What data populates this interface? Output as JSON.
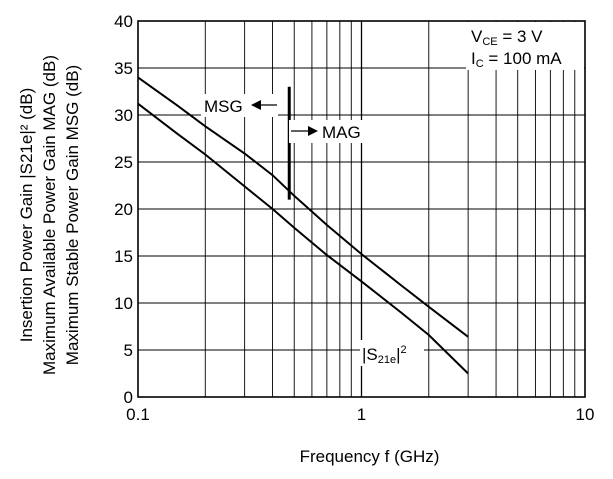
{
  "chart_data": {
    "type": "line",
    "x_scale": "log",
    "xlim": [
      0.1,
      10
    ],
    "ylim": [
      0,
      40
    ],
    "grid": true,
    "xlabel": "Frequency  f (GHz)",
    "ylabel_lines": [
      "Insertion Power Gain  |S21e|² (dB)",
      "Maximum Available Power Gain  MAG (dB)",
      "Maximum Stable Power Gain  MSG (dB)"
    ],
    "x_ticks": [
      {
        "value": 0.1,
        "label": "0.1"
      },
      {
        "value": 1,
        "label": "1"
      },
      {
        "value": 10,
        "label": "10"
      }
    ],
    "y_ticks": [
      0,
      5,
      10,
      15,
      20,
      25,
      30,
      35,
      40
    ],
    "conditions": {
      "vce_sub": "CE",
      "vce_value": " = 3 V",
      "ic_sub": "C",
      "ic_value": " = 100 mA"
    },
    "series": [
      {
        "name": "MSG / MAG",
        "x": [
          0.1,
          0.15,
          0.2,
          0.3,
          0.4,
          0.5,
          0.7,
          1.0,
          1.5,
          2.0,
          3.0
        ],
        "y": [
          34.0,
          31.0,
          28.8,
          25.9,
          23.6,
          21.4,
          18.3,
          15.2,
          11.9,
          9.6,
          6.4
        ]
      },
      {
        "name": "|S21e|²",
        "x": [
          0.1,
          0.15,
          0.2,
          0.3,
          0.4,
          0.5,
          0.7,
          1.0,
          1.5,
          2.0,
          3.0
        ],
        "y": [
          31.2,
          28.0,
          25.8,
          22.4,
          20.0,
          18.0,
          15.1,
          12.3,
          9.0,
          6.6,
          2.5
        ]
      }
    ],
    "boundary": {
      "x": 0.475,
      "y_range": [
        21,
        33
      ]
    },
    "annotations": {
      "msg": "MSG",
      "mag": "MAG",
      "s21_prefix": "|S",
      "s21_sub": "21e",
      "s21_suffix": "|",
      "s21_sup": "2"
    }
  }
}
